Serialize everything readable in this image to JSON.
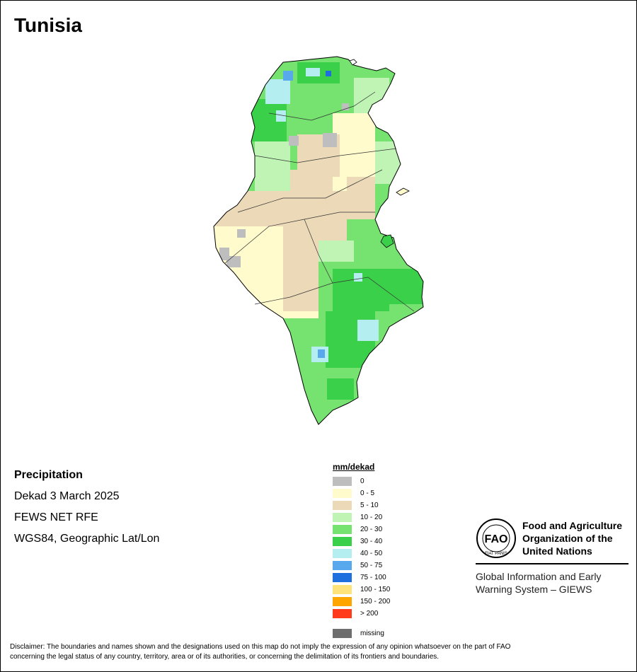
{
  "map_title": "Tunisia",
  "info": {
    "heading": "Precipitation",
    "period": "Dekad 3 March 2025",
    "source": "FEWS NET RFE",
    "projection": "WGS84, Geographic Lat/Lon"
  },
  "legend": {
    "title": "mm/dekad",
    "items": [
      {
        "label": "0",
        "color": "#bebebe"
      },
      {
        "label": "0 - 5",
        "color": "#fffbcc"
      },
      {
        "label": "5 - 10",
        "color": "#ecd9b8"
      },
      {
        "label": "10 - 20",
        "color": "#bff4b5"
      },
      {
        "label": "20 - 30",
        "color": "#76e270"
      },
      {
        "label": "30 - 40",
        "color": "#3bd04a"
      },
      {
        "label": "40 - 50",
        "color": "#b4eef0"
      },
      {
        "label": "50 - 75",
        "color": "#57a8ed"
      },
      {
        "label": "75 - 100",
        "color": "#1f6fde"
      },
      {
        "label": "100 - 150",
        "color": "#fee37a"
      },
      {
        "label": "150 - 200",
        "color": "#ffa500"
      },
      {
        "label": "> 200",
        "color": "#ff3b1c"
      }
    ],
    "missing": {
      "label": "missing",
      "color": "#6e6e6e"
    }
  },
  "fao": {
    "logo_text": "FAO",
    "logo_ring": "FIAT PANIS",
    "name_line1": "Food and Agriculture",
    "name_line2": "Organization of the",
    "name_line3": "United Nations",
    "giews_line1": "Global Information and Early",
    "giews_line2": "Warning System – GIEWS"
  },
  "disclaimer_line1": "Disclaimer: The boundaries and names shown and the designations used on this map do not imply the expression of any opinion whatsoever on the part of FAO",
  "disclaimer_line2": "concerning the legal status of any country, territory, area or of its authorities, or concerning the delimitation of its frontiers and boundaries."
}
